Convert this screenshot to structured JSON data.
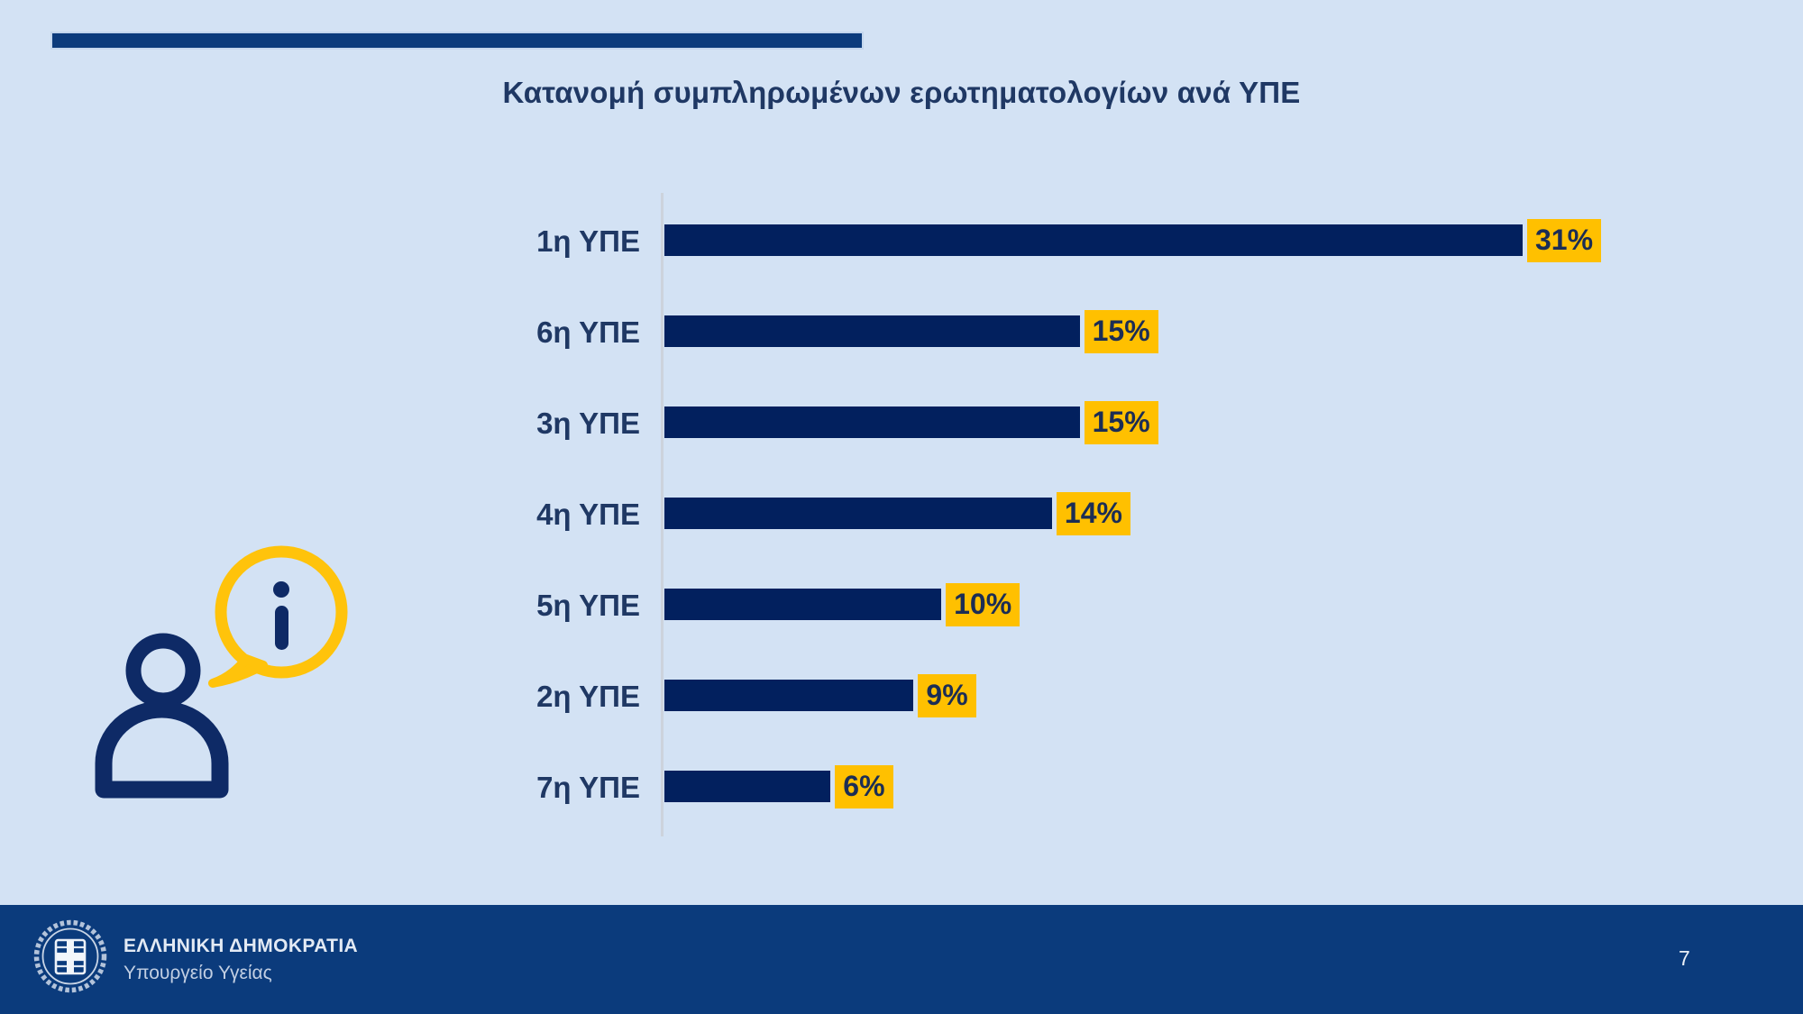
{
  "slide": {
    "title": "Κατανομή συμπληρωμένων ερωτηματολογίων ανά ΥΠΕ",
    "page_number": "7"
  },
  "footer": {
    "organization": "ΕΛΛΗΝΙΚΗ ΔΗΜΟΚΡΑΤΙΑ",
    "department": "Υπουργείο Υγείας"
  },
  "icons": {
    "info_person": "person-with-info-speech-bubble",
    "emblem": "greek-republic-coat-of-arms"
  },
  "colors": {
    "background": "#D3E2F4",
    "bar": "#02205E",
    "accent_gold": "#FFC000",
    "navy_text": "#1F3864",
    "value_text": "#1B2D55",
    "footer_bg": "#0B3B7C",
    "axis_line": "#CCD3DC",
    "bubble_gold": "#FFC30B",
    "person_navy": "#0E2A66"
  },
  "chart_data": {
    "type": "bar",
    "orientation": "horizontal",
    "title": "Κατανομή συμπληρωμένων ερωτηματολογίων ανά ΥΠΕ",
    "categories": [
      "1η ΥΠΕ",
      "6η ΥΠΕ",
      "3η ΥΠΕ",
      "4η ΥΠΕ",
      "5η ΥΠΕ",
      "2η ΥΠΕ",
      "7η ΥΠΕ"
    ],
    "values": [
      31,
      15,
      15,
      14,
      10,
      9,
      6
    ],
    "value_labels": [
      "31%",
      "15%",
      "15%",
      "14%",
      "10%",
      "9%",
      "6%"
    ],
    "unit": "percent",
    "xlim": [
      0,
      31
    ],
    "grid": false,
    "legend": false,
    "value_label_style": "gold-chip-at-bar-end",
    "sort_order": "descending-except-ties"
  }
}
